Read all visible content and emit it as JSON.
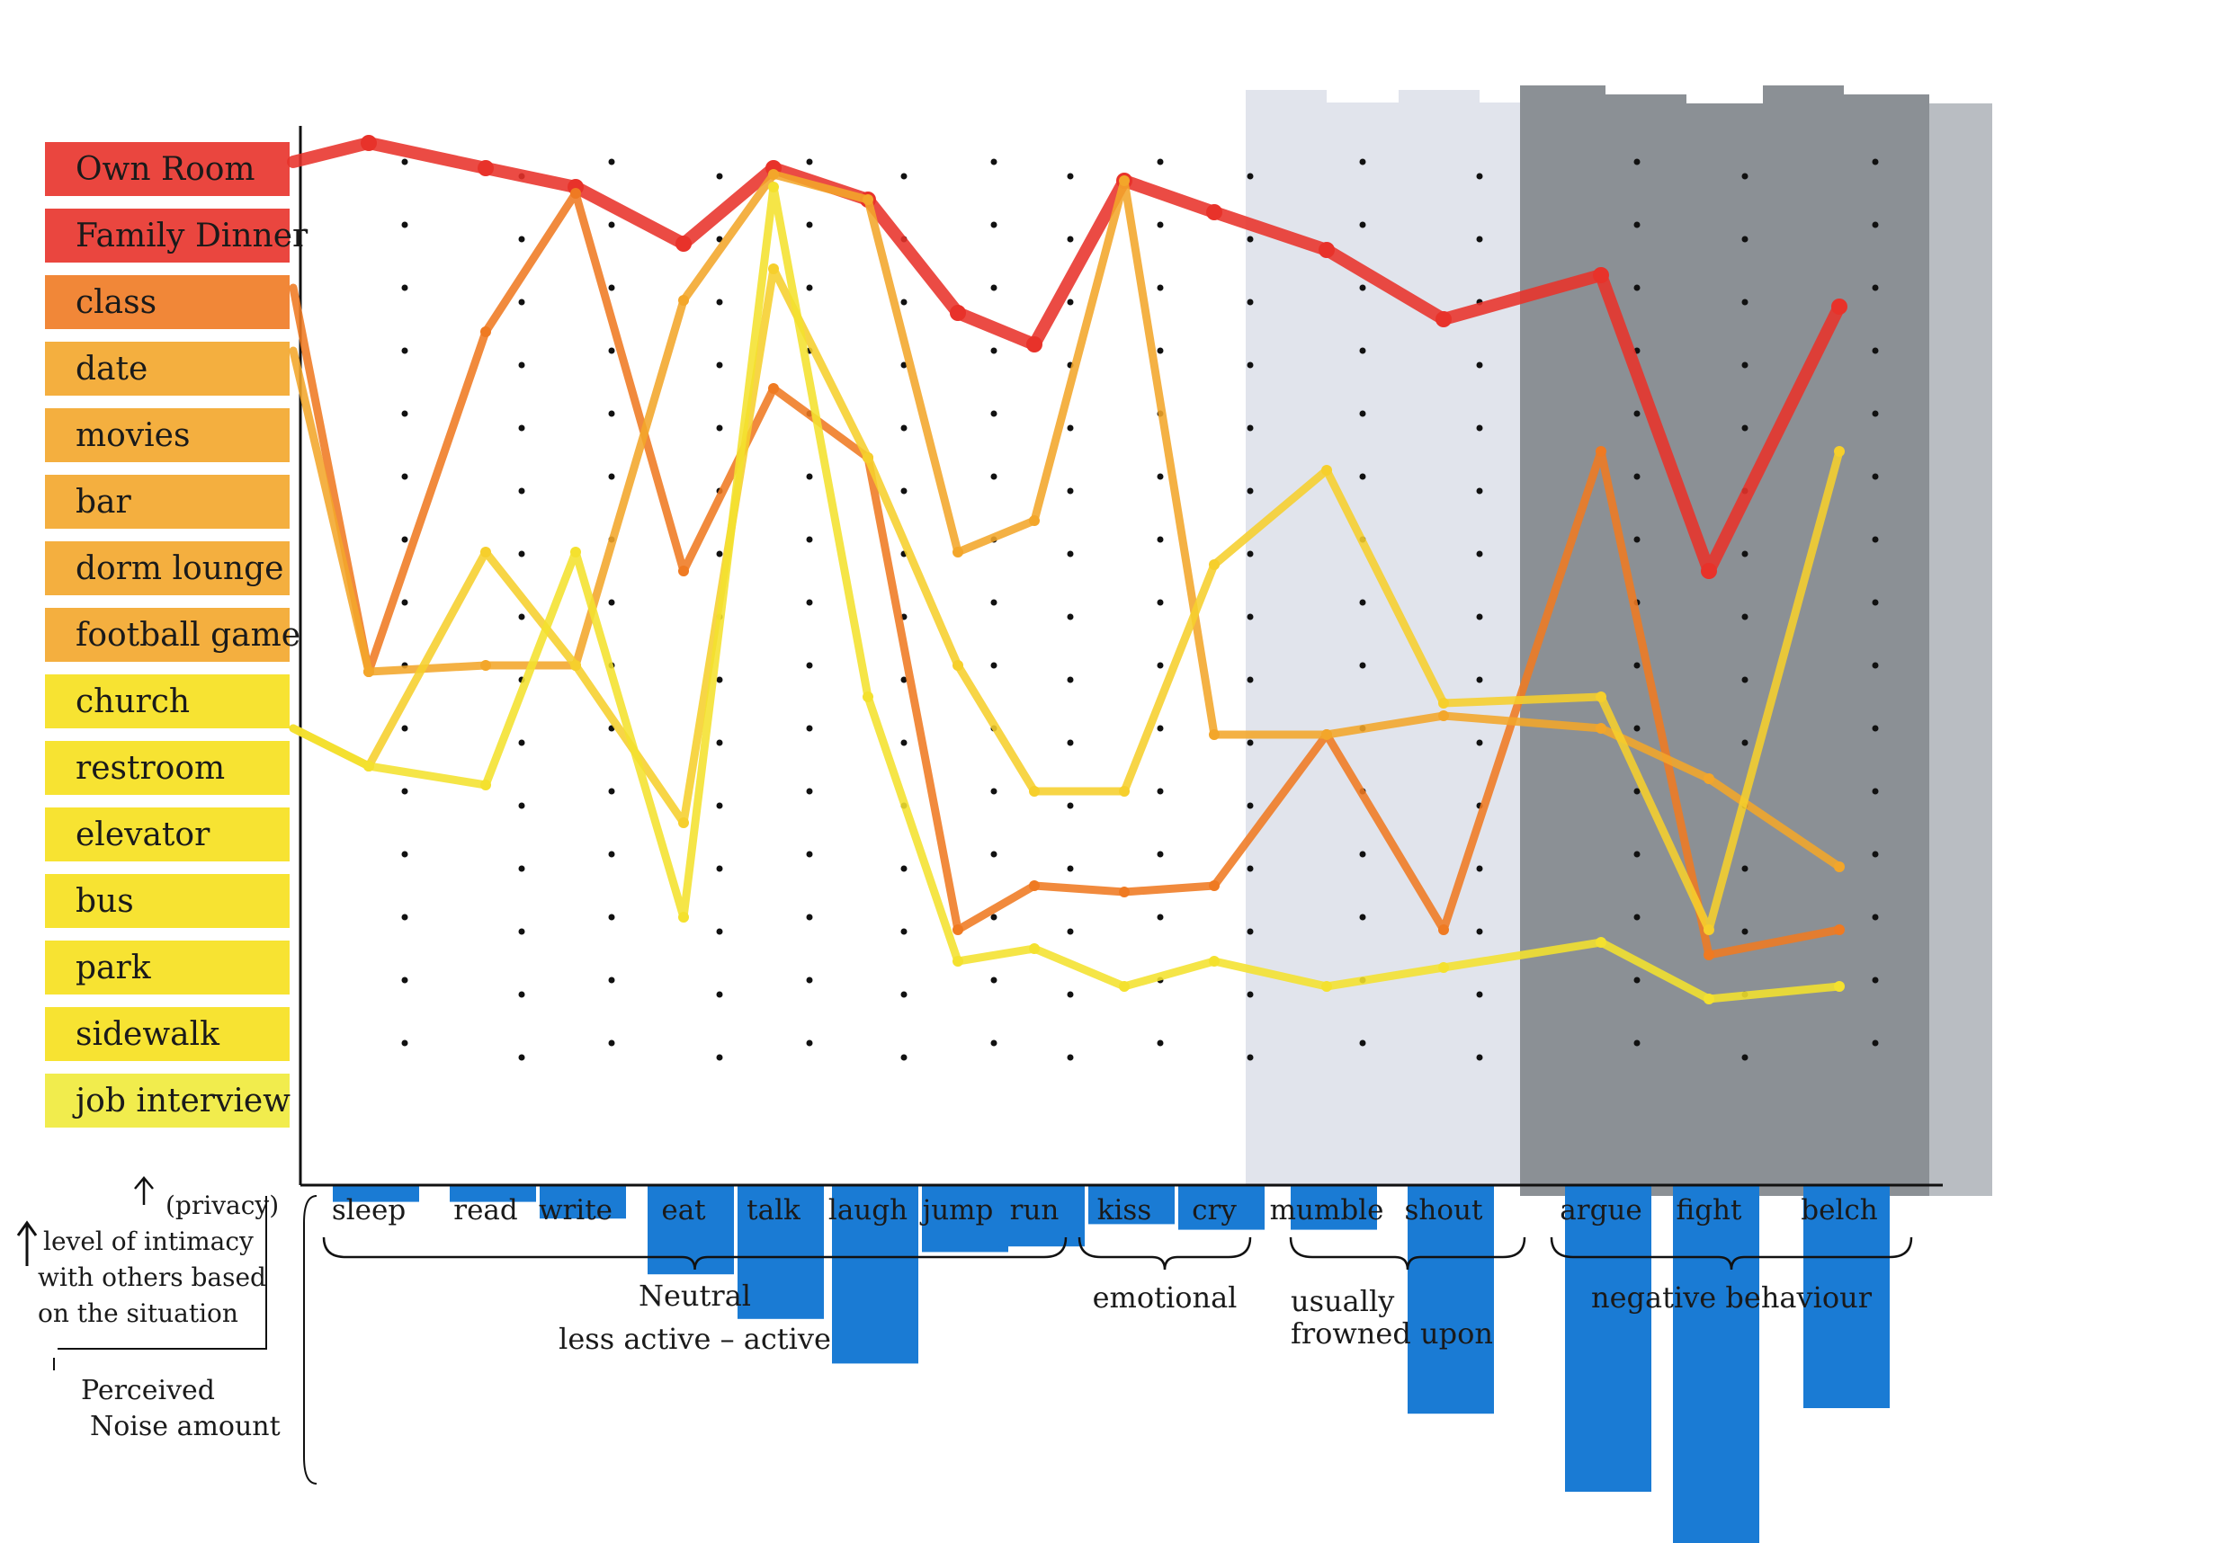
{
  "chart_data": {
    "type": "line",
    "title": "",
    "x_categories": [
      "sleep",
      "read",
      "write",
      "eat",
      "talk",
      "laugh",
      "jump",
      "run",
      "kiss",
      "cry",
      "mumble",
      "shout",
      "argue",
      "fight",
      "belch"
    ],
    "y_categories": [
      "Own Room",
      "Family Dinner",
      "class",
      "date",
      "movies",
      "bar",
      "dorm lounge",
      "football game",
      "church",
      "restroom",
      "elevator",
      "bus",
      "park",
      "sidewalk",
      "job interview"
    ],
    "y_axis_note": [
      "(privacy)",
      "level of intimacy",
      "with others based",
      "on the situation"
    ],
    "noise_axis_note": [
      "Perceived",
      "Noise amount"
    ],
    "groups": [
      {
        "label": "Neutral",
        "sublabel": "less active  –  active",
        "from": "sleep",
        "to": "run"
      },
      {
        "label": "emotional",
        "from": "kiss",
        "to": "cry"
      },
      {
        "label": "usually frowned upon",
        "from": "mumble",
        "to": "shout"
      },
      {
        "label": "negative behaviour",
        "from": "argue",
        "to": "belch"
      }
    ],
    "perceived_noise": [
      0.3,
      0.3,
      0.6,
      1.6,
      2.4,
      3.2,
      1.2,
      1.1,
      0.7,
      0.8,
      0.8,
      4.1,
      5.5,
      7.1,
      4.0
    ],
    "series": [
      {
        "location": "Own Room",
        "color": "#e8322a",
        "values": [
          14.3,
          13.9,
          13.6,
          12.7,
          13.9,
          13.4,
          11.6,
          11.1,
          13.7,
          13.2,
          12.6,
          11.5,
          12.2,
          7.5,
          11.7
        ]
      },
      {
        "location": "class",
        "color": "#ef7a22",
        "values": [
          5.9,
          11.3,
          13.5,
          7.5,
          10.4,
          9.3,
          1.8,
          2.5,
          2.4,
          2.5,
          4.9,
          1.8,
          9.4,
          1.4,
          1.8
        ]
      },
      {
        "location": "date",
        "color": "#f3a62a",
        "values": [
          5.9,
          6.0,
          6.0,
          11.8,
          13.8,
          13.4,
          7.8,
          8.3,
          13.7,
          4.9,
          4.9,
          5.2,
          5.0,
          4.2,
          2.8
        ]
      },
      {
        "location": "restroom",
        "color": "#f6cf2c",
        "values": [
          4.4,
          7.8,
          6.0,
          3.5,
          12.3,
          9.3,
          6.0,
          4.0,
          4.0,
          7.6,
          9.1,
          5.4,
          5.5,
          1.8,
          9.4
        ]
      },
      {
        "location": "restroom",
        "color": "#f4e12e",
        "values": [
          4.4,
          4.1,
          7.8,
          2.0,
          13.6,
          5.5,
          1.3,
          1.5,
          0.9,
          1.3,
          0.9,
          1.2,
          1.6,
          0.7,
          0.9
        ]
      }
    ]
  }
}
